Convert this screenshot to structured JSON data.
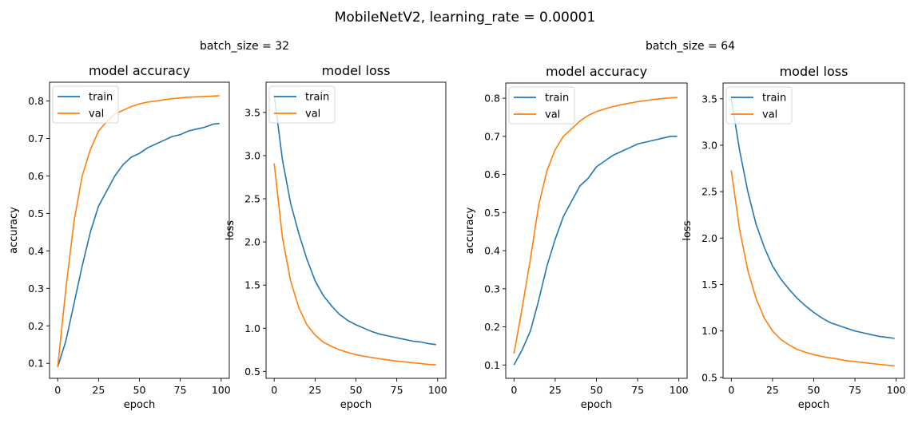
{
  "figure": {
    "title": "MobileNetV2, learning_rate = 0.00001",
    "groups": [
      "batch_size = 32",
      "batch_size = 64"
    ]
  },
  "colors": {
    "train": "#1f77b4",
    "val": "#ff7f0e"
  },
  "chart_data": [
    {
      "type": "line",
      "group": "batch_size = 32",
      "title": "model accuracy",
      "xlabel": "epoch",
      "ylabel": "accuracy",
      "xlim": [
        -5,
        105
      ],
      "ylim": [
        0.06,
        0.85
      ],
      "xticks": [
        0,
        25,
        50,
        75,
        100
      ],
      "yticks": [
        0.1,
        0.2,
        0.3,
        0.4,
        0.5,
        0.6,
        0.7,
        0.8
      ],
      "legend": {
        "position": "top-left",
        "entries": [
          "train",
          "val"
        ]
      },
      "grid": false,
      "series": [
        {
          "name": "train",
          "x": [
            0,
            5,
            10,
            15,
            20,
            25,
            30,
            35,
            40,
            45,
            50,
            55,
            60,
            65,
            70,
            75,
            80,
            85,
            90,
            95,
            99
          ],
          "y": [
            0.09,
            0.16,
            0.26,
            0.36,
            0.45,
            0.52,
            0.56,
            0.6,
            0.63,
            0.65,
            0.66,
            0.675,
            0.685,
            0.695,
            0.705,
            0.71,
            0.72,
            0.725,
            0.73,
            0.738,
            0.74
          ]
        },
        {
          "name": "val",
          "x": [
            0,
            5,
            10,
            15,
            20,
            25,
            30,
            35,
            40,
            45,
            50,
            55,
            60,
            65,
            70,
            75,
            80,
            85,
            90,
            95,
            99
          ],
          "y": [
            0.09,
            0.3,
            0.48,
            0.6,
            0.67,
            0.72,
            0.745,
            0.765,
            0.775,
            0.785,
            0.792,
            0.797,
            0.8,
            0.803,
            0.806,
            0.808,
            0.81,
            0.811,
            0.812,
            0.813,
            0.814
          ]
        }
      ]
    },
    {
      "type": "line",
      "group": "batch_size = 32",
      "title": "model loss",
      "xlabel": "epoch",
      "ylabel": "loss",
      "xlim": [
        -5,
        105
      ],
      "ylim": [
        0.42,
        3.85
      ],
      "xticks": [
        0,
        25,
        50,
        75,
        100
      ],
      "yticks": [
        0.5,
        1.0,
        1.5,
        2.0,
        2.5,
        3.0,
        3.5
      ],
      "legend": {
        "position": "top-left",
        "entries": [
          "train",
          "val"
        ]
      },
      "grid": false,
      "series": [
        {
          "name": "train",
          "x": [
            0,
            5,
            10,
            15,
            20,
            25,
            30,
            35,
            40,
            45,
            50,
            55,
            60,
            65,
            70,
            75,
            80,
            85,
            90,
            95,
            99
          ],
          "y": [
            3.7,
            2.95,
            2.45,
            2.1,
            1.8,
            1.55,
            1.38,
            1.26,
            1.16,
            1.09,
            1.04,
            1.0,
            0.96,
            0.93,
            0.91,
            0.89,
            0.87,
            0.85,
            0.84,
            0.82,
            0.81
          ]
        },
        {
          "name": "val",
          "x": [
            0,
            5,
            10,
            15,
            20,
            25,
            30,
            35,
            40,
            45,
            50,
            55,
            60,
            65,
            70,
            75,
            80,
            85,
            90,
            95,
            99
          ],
          "y": [
            2.91,
            2.05,
            1.55,
            1.24,
            1.04,
            0.92,
            0.84,
            0.79,
            0.75,
            0.72,
            0.695,
            0.675,
            0.66,
            0.645,
            0.632,
            0.62,
            0.61,
            0.6,
            0.59,
            0.58,
            0.575
          ]
        }
      ]
    },
    {
      "type": "line",
      "group": "batch_size = 64",
      "title": "model accuracy",
      "xlabel": "epoch",
      "ylabel": "accuracy",
      "xlim": [
        -5,
        105
      ],
      "ylim": [
        0.065,
        0.84
      ],
      "xticks": [
        0,
        25,
        50,
        75,
        100
      ],
      "yticks": [
        0.1,
        0.2,
        0.3,
        0.4,
        0.5,
        0.6,
        0.7,
        0.8
      ],
      "legend": {
        "position": "top-left",
        "entries": [
          "train",
          "val"
        ]
      },
      "grid": false,
      "series": [
        {
          "name": "train",
          "x": [
            0,
            5,
            10,
            15,
            20,
            25,
            30,
            35,
            40,
            45,
            50,
            55,
            60,
            65,
            70,
            75,
            80,
            85,
            90,
            95,
            99
          ],
          "y": [
            0.1,
            0.14,
            0.19,
            0.27,
            0.36,
            0.43,
            0.49,
            0.53,
            0.57,
            0.59,
            0.62,
            0.635,
            0.65,
            0.66,
            0.67,
            0.68,
            0.685,
            0.69,
            0.695,
            0.7,
            0.7
          ]
        },
        {
          "name": "val",
          "x": [
            0,
            5,
            10,
            15,
            20,
            25,
            30,
            35,
            40,
            45,
            50,
            55,
            60,
            65,
            70,
            75,
            80,
            85,
            90,
            95,
            99
          ],
          "y": [
            0.13,
            0.25,
            0.38,
            0.52,
            0.61,
            0.665,
            0.7,
            0.72,
            0.74,
            0.755,
            0.765,
            0.772,
            0.778,
            0.783,
            0.787,
            0.791,
            0.794,
            0.797,
            0.799,
            0.801,
            0.802
          ]
        }
      ]
    },
    {
      "type": "line",
      "group": "batch_size = 64",
      "title": "model loss",
      "xlabel": "epoch",
      "ylabel": "loss",
      "xlim": [
        -5,
        105
      ],
      "ylim": [
        0.49,
        3.67
      ],
      "xticks": [
        0,
        25,
        50,
        75,
        100
      ],
      "yticks": [
        0.5,
        1.0,
        1.5,
        2.0,
        2.5,
        3.0,
        3.5
      ],
      "legend": {
        "position": "top-left",
        "entries": [
          "train",
          "val"
        ]
      },
      "grid": false,
      "series": [
        {
          "name": "train",
          "x": [
            0,
            5,
            10,
            15,
            20,
            25,
            30,
            35,
            40,
            45,
            50,
            55,
            60,
            65,
            70,
            75,
            80,
            85,
            90,
            95,
            99
          ],
          "y": [
            3.5,
            2.95,
            2.5,
            2.15,
            1.9,
            1.7,
            1.56,
            1.45,
            1.35,
            1.27,
            1.2,
            1.14,
            1.09,
            1.06,
            1.03,
            1.0,
            0.98,
            0.96,
            0.94,
            0.93,
            0.92
          ]
        },
        {
          "name": "val",
          "x": [
            0,
            5,
            10,
            15,
            20,
            25,
            30,
            35,
            40,
            45,
            50,
            55,
            60,
            65,
            70,
            75,
            80,
            85,
            90,
            95,
            99
          ],
          "y": [
            2.73,
            2.1,
            1.65,
            1.35,
            1.14,
            1.0,
            0.91,
            0.85,
            0.8,
            0.77,
            0.745,
            0.725,
            0.71,
            0.695,
            0.68,
            0.67,
            0.66,
            0.65,
            0.64,
            0.63,
            0.625
          ]
        }
      ]
    }
  ]
}
